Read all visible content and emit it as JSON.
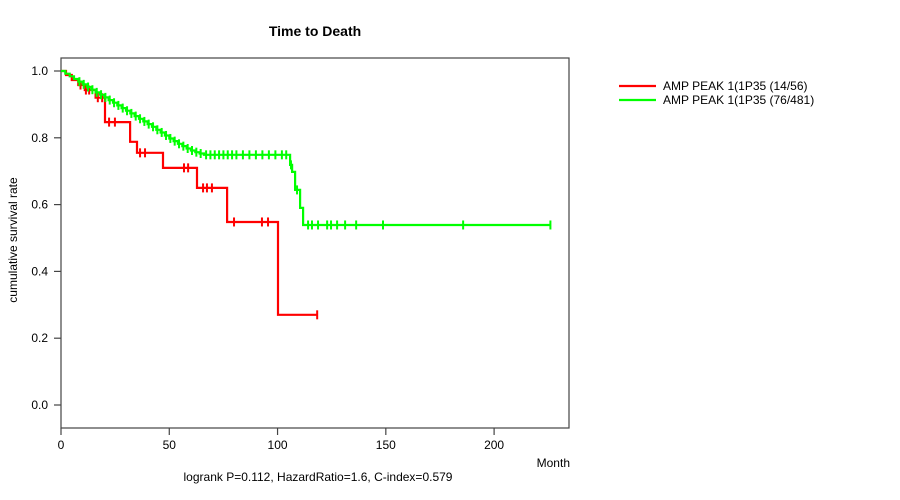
{
  "chart_data": {
    "type": "line",
    "subtype": "kaplan-meier-step",
    "title": "Time to Death",
    "xlabel": "Month",
    "ylabel": "cumulative survival rate",
    "footnote": "logrank P=0.112, HazardRatio=1.6, C-index=0.579",
    "xlim": [
      0,
      235
    ],
    "ylim": [
      0.0,
      1.0
    ],
    "grid": false,
    "legend_position": "right-outside",
    "x_ticks": [
      {
        "label": "0",
        "value": 0
      },
      {
        "label": "50",
        "value": 50
      },
      {
        "label": "100",
        "value": 100
      },
      {
        "label": "150",
        "value": 150
      },
      {
        "label": "200",
        "value": 200
      }
    ],
    "y_ticks": [
      {
        "label": "0.0",
        "value": 0.0
      },
      {
        "label": "0.2",
        "value": 0.2
      },
      {
        "label": "0.4",
        "value": 0.4
      },
      {
        "label": "0.6",
        "value": 0.6
      },
      {
        "label": "0.8",
        "value": 0.8
      },
      {
        "label": "1.0",
        "value": 1.0
      }
    ],
    "series": [
      {
        "name": "AMP PEAK  1(1P35 (14/56)",
        "events_over_n": "14/56",
        "color": "#FF0000",
        "steps": [
          [
            0,
            1.0
          ],
          [
            2.3,
            0.988
          ],
          [
            5,
            0.973
          ],
          [
            8,
            0.958
          ],
          [
            11,
            0.943
          ],
          [
            16,
            0.92
          ],
          [
            20.3,
            0.847
          ],
          [
            31.9,
            0.788
          ],
          [
            35.1,
            0.755
          ],
          [
            47.1,
            0.71
          ],
          [
            62.8,
            0.65
          ],
          [
            76.7,
            0.548
          ],
          [
            100.2,
            0.27
          ]
        ],
        "end_month": 118.3,
        "censor_months": [
          9,
          11.5,
          13,
          17,
          19,
          22.2,
          24.9,
          36.5,
          38.8,
          56.8,
          58.7,
          65.6,
          67.4,
          69.7,
          79.9,
          92.8,
          95.6,
          118.3
        ]
      },
      {
        "name": "AMP PEAK  1(1P35 (76/481)",
        "events_over_n": "76/481",
        "color": "#00FF00",
        "steps": [
          [
            0,
            1.0
          ],
          [
            2,
            0.992
          ],
          [
            4,
            0.984
          ],
          [
            6,
            0.976
          ],
          [
            8,
            0.968
          ],
          [
            10,
            0.96
          ],
          [
            12,
            0.952
          ],
          [
            14,
            0.944
          ],
          [
            16,
            0.936
          ],
          [
            18,
            0.929
          ],
          [
            20,
            0.921
          ],
          [
            22,
            0.913
          ],
          [
            24,
            0.905
          ],
          [
            26,
            0.897
          ],
          [
            28,
            0.889
          ],
          [
            30,
            0.881
          ],
          [
            32,
            0.873
          ],
          [
            34,
            0.865
          ],
          [
            36,
            0.857
          ],
          [
            38,
            0.849
          ],
          [
            40,
            0.841
          ],
          [
            42,
            0.833
          ],
          [
            44,
            0.824
          ],
          [
            46,
            0.816
          ],
          [
            48,
            0.807
          ],
          [
            50,
            0.798
          ],
          [
            52,
            0.79
          ],
          [
            54,
            0.782
          ],
          [
            56,
            0.775
          ],
          [
            58,
            0.768
          ],
          [
            60,
            0.762
          ],
          [
            62,
            0.757
          ],
          [
            64,
            0.753
          ],
          [
            66,
            0.749
          ],
          [
            105.8,
            0.719
          ],
          [
            106.7,
            0.698
          ],
          [
            108.1,
            0.644
          ],
          [
            110.4,
            0.59
          ],
          [
            111.8,
            0.539
          ]
        ],
        "end_month": 226,
        "censor_months": [
          8.5,
          10.5,
          12.5,
          14.5,
          16.5,
          18.5,
          20.5,
          22.5,
          24.5,
          26.5,
          28.5,
          30.5,
          32.5,
          34.5,
          36.5,
          38.5,
          40.5,
          42.5,
          44.5,
          46.5,
          48.5,
          50.5,
          52.5,
          54.5,
          56.5,
          58.5,
          60.5,
          62.5,
          64.5,
          67,
          69,
          71,
          73,
          75,
          77,
          79,
          81,
          84,
          87,
          90,
          93,
          96,
          99,
          102,
          104,
          106.2,
          109,
          114.1,
          115.9,
          118.7,
          122.9,
          124.7,
          127.5,
          131.2,
          136.3,
          148.7,
          185.7,
          226
        ]
      }
    ]
  }
}
